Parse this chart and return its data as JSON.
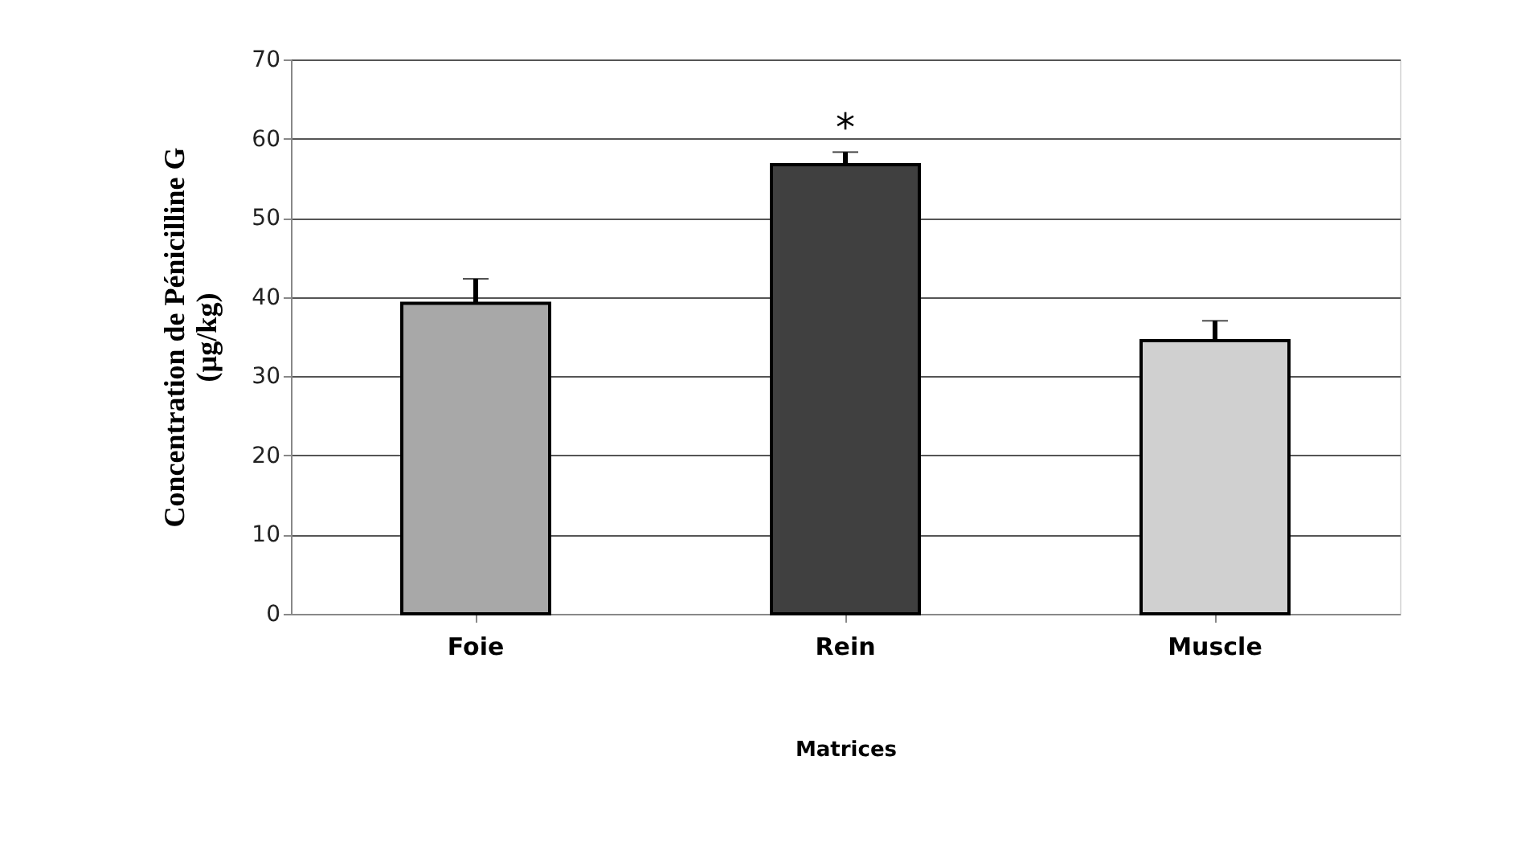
{
  "chart_data": {
    "type": "bar",
    "xlabel": "Matrices",
    "ylabel": "Concentration de Pénicilline G\n(µg/kg)",
    "categories": [
      "Foie",
      "Rein",
      "Muscle"
    ],
    "values": [
      39.2,
      56.7,
      34.5
    ],
    "colors": [
      "#a8a8a8",
      "#404040",
      "#d0d0d0"
    ],
    "errors": [
      [
        39.2,
        42.3
      ],
      [
        56.7,
        58.3
      ],
      [
        34.5,
        37.0
      ]
    ],
    "annotations": [
      {
        "text": "*",
        "x": "Rein",
        "y": 58.3
      }
    ],
    "ylim": [
      0,
      70
    ],
    "yticks": [
      0,
      10,
      20,
      30,
      40,
      50,
      60,
      70
    ],
    "grid": "y"
  }
}
